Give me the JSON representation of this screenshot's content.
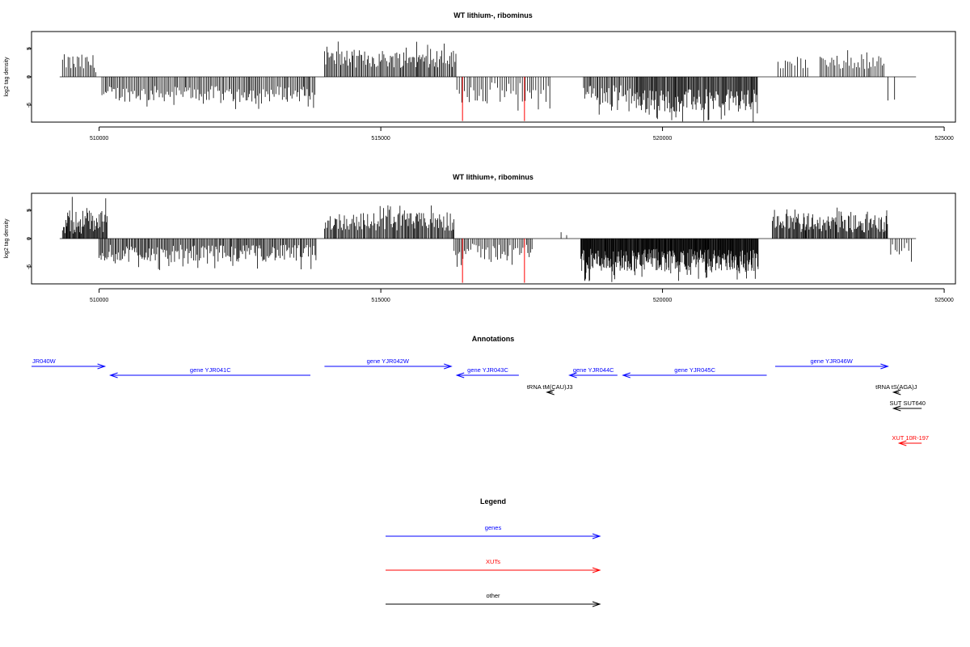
{
  "chart_data": [
    {
      "type": "bar",
      "title": "WT lithium-, ribominus",
      "xlabel": "",
      "ylabel": "log2 tag density",
      "xlim": [
        508800,
        525200
      ],
      "ylim": [
        -8,
        8
      ],
      "xticks": [
        510000,
        515000,
        520000,
        525000
      ],
      "yticks": [
        5,
        0,
        -5
      ],
      "baseline": {
        "from": 509300,
        "to": 524500
      },
      "highlight_color": "#ff0000",
      "highlights": [
        {
          "x": 516450,
          "y": -7.8
        },
        {
          "x": 517550,
          "y": -7.8
        }
      ],
      "segments": [
        {
          "from": 509350,
          "to": 509500,
          "mean": 2.6,
          "amp": 1.4,
          "step": 30
        },
        {
          "from": 509500,
          "to": 509950,
          "mean": 2.4,
          "amp": 1.6,
          "step": 28
        },
        {
          "from": 510050,
          "to": 513850,
          "mean": -3.0,
          "amp": 1.4,
          "step": 26
        },
        {
          "from": 514000,
          "to": 516350,
          "mean": 3.2,
          "amp": 1.6,
          "step": 22
        },
        {
          "from": 516350,
          "to": 518000,
          "mean": -2.8,
          "amp": 1.8,
          "step": 40
        },
        {
          "from": 518600,
          "to": 519500,
          "mean": -3.2,
          "amp": 1.8,
          "step": 22
        },
        {
          "from": 519500,
          "to": 521700,
          "mean": -4.2,
          "amp": 2.0,
          "step": 16
        },
        {
          "from": 522050,
          "to": 522600,
          "mean": 2.2,
          "amp": 0.9,
          "step": 50
        },
        {
          "from": 522800,
          "to": 523950,
          "mean": 2.6,
          "amp": 1.2,
          "step": 30
        },
        {
          "from": 524000,
          "to": 524200,
          "mean": -3.5,
          "amp": 1.5,
          "step": 100
        }
      ]
    },
    {
      "type": "bar",
      "title": "WT lithium+, ribominus",
      "xlabel": "",
      "ylabel": "log2 tag density",
      "xlim": [
        508800,
        525200
      ],
      "ylim": [
        -8,
        8
      ],
      "xticks": [
        510000,
        515000,
        520000,
        525000
      ],
      "yticks": [
        5,
        0,
        -5
      ],
      "baseline": {
        "from": 509300,
        "to": 524500
      },
      "highlight_color": "#ff0000",
      "highlights": [
        {
          "x": 516450,
          "y": -7.8
        },
        {
          "x": 517550,
          "y": -7.8
        }
      ],
      "segments": [
        {
          "from": 509350,
          "to": 510150,
          "mean": 3.0,
          "amp": 2.2,
          "step": 14
        },
        {
          "from": 510000,
          "to": 513850,
          "mean": -2.6,
          "amp": 1.5,
          "step": 20
        },
        {
          "from": 514000,
          "to": 516300,
          "mean": 3.0,
          "amp": 1.6,
          "step": 18
        },
        {
          "from": 516300,
          "to": 517700,
          "mean": -2.4,
          "amp": 1.5,
          "step": 30
        },
        {
          "from": 518200,
          "to": 518400,
          "mean": 1.0,
          "amp": 0.5,
          "step": 100
        },
        {
          "from": 518550,
          "to": 521700,
          "mean": -3.8,
          "amp": 2.0,
          "step": 10
        },
        {
          "from": 521950,
          "to": 524000,
          "mean": 2.6,
          "amp": 1.5,
          "step": 16
        },
        {
          "from": 524050,
          "to": 524450,
          "mean": -1.8,
          "amp": 1.2,
          "step": 40
        }
      ]
    }
  ],
  "annotations": {
    "title": "Annotations",
    "xlim": [
      508800,
      525200
    ],
    "rows": [
      {
        "start": 508800,
        "end": 510100,
        "strand": "+",
        "label": "JR040W",
        "color": "#0000ff",
        "row": 0,
        "label_pos": "left"
      },
      {
        "start": 510200,
        "end": 513750,
        "strand": "-",
        "label": "gene YJR041C",
        "color": "#0000ff",
        "row": 1
      },
      {
        "start": 514000,
        "end": 516250,
        "strand": "+",
        "label": "gene YJR042W",
        "color": "#0000ff",
        "row": 0
      },
      {
        "start": 516350,
        "end": 517450,
        "strand": "-",
        "label": "gene YJR043C",
        "color": "#0000ff",
        "row": 1
      },
      {
        "start": 518350,
        "end": 519200,
        "strand": "-",
        "label": "gene YJR044C",
        "color": "#0000ff",
        "row": 1
      },
      {
        "start": 519300,
        "end": 521850,
        "strand": "-",
        "label": "gene YJR045C",
        "color": "#0000ff",
        "row": 1
      },
      {
        "start": 522000,
        "end": 524000,
        "strand": "+",
        "label": "gene YJR046W",
        "color": "#0000ff",
        "row": 0
      },
      {
        "start": 517950,
        "end": 518050,
        "strand": "-",
        "label": "tRNA tM(CAU)J3",
        "color": "#000000",
        "row": 2
      },
      {
        "start": 524100,
        "end": 524200,
        "strand": "-",
        "label": "tRNA tS(AGA)J",
        "color": "#000000",
        "row": 2
      },
      {
        "start": 524100,
        "end": 524600,
        "strand": "-",
        "label": "SUT SUT640",
        "color": "#000000",
        "row": 3
      },
      {
        "start": 524200,
        "end": 524600,
        "strand": "-",
        "label": "XUT 10R-197",
        "color": "#ff0000",
        "row": 5
      }
    ]
  },
  "legend": {
    "title": "Legend",
    "items": [
      {
        "label": "genes",
        "color": "#0000ff"
      },
      {
        "label": "XUTs",
        "color": "#ff0000"
      },
      {
        "label": "other",
        "color": "#000000"
      }
    ]
  }
}
